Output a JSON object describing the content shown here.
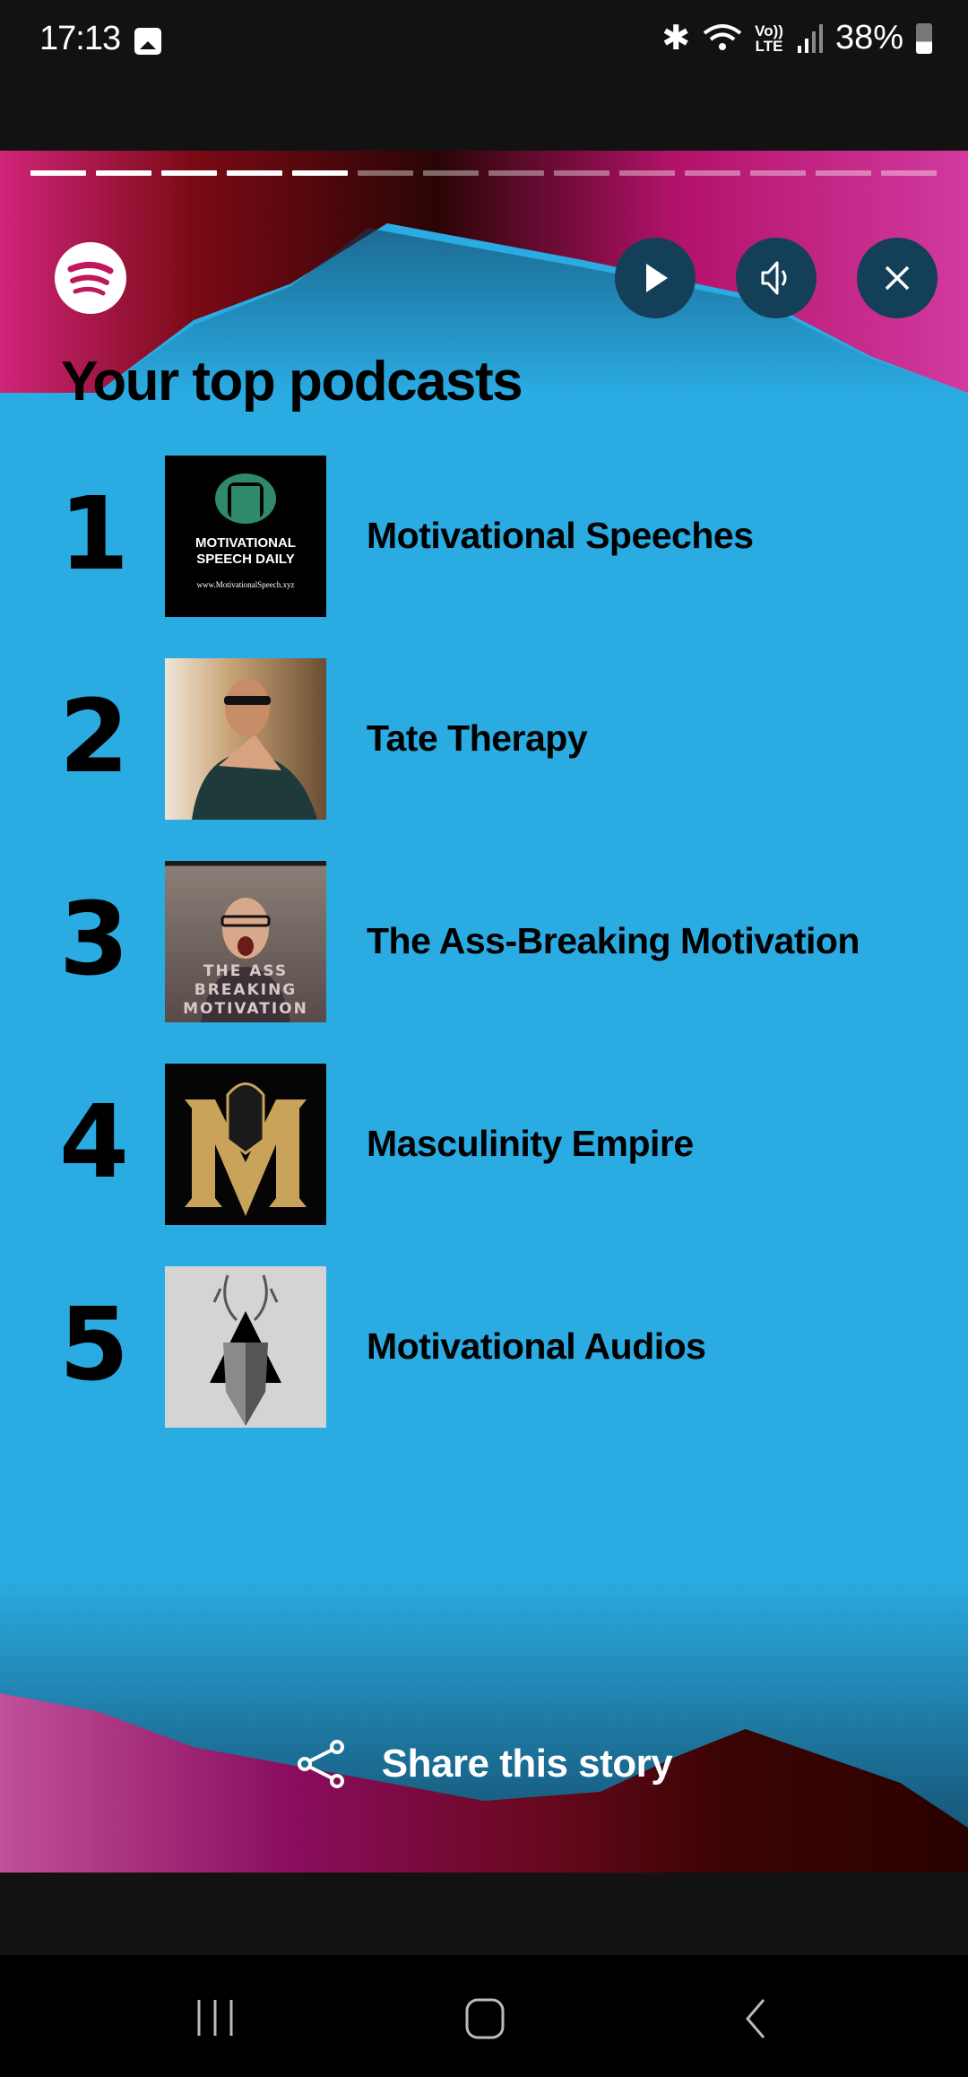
{
  "status_bar": {
    "time": "17:13",
    "volte": "Vo))",
    "lte": "LTE",
    "battery": "38%",
    "icons": [
      "gallery-icon",
      "bluetooth-icon",
      "wifi-icon",
      "volte-icon",
      "signal-icon",
      "battery-icon"
    ]
  },
  "story": {
    "progress": {
      "total_segments": 14,
      "completed_segments": 5
    },
    "title": "Your top podcasts",
    "podcasts": [
      {
        "rank": "1",
        "name": "Motivational Speeches",
        "art_text": [
          "MOTIVATIONAL",
          "SPEECH DAILY",
          "www.MotivationalSpeech.xyz"
        ]
      },
      {
        "rank": "2",
        "name": "Tate Therapy"
      },
      {
        "rank": "3",
        "name": "The Ass-Breaking Motivation",
        "art_text": [
          "THE ASS",
          "BREAKING",
          "MOTIVATION"
        ]
      },
      {
        "rank": "4",
        "name": "Masculinity Empire"
      },
      {
        "rank": "5",
        "name": "Motivational Audios"
      }
    ],
    "share_label": "Share this story",
    "colors": {
      "background": "#2AABE2",
      "control_bg": "#143f58",
      "spotify_logo": "#c0185a"
    }
  }
}
